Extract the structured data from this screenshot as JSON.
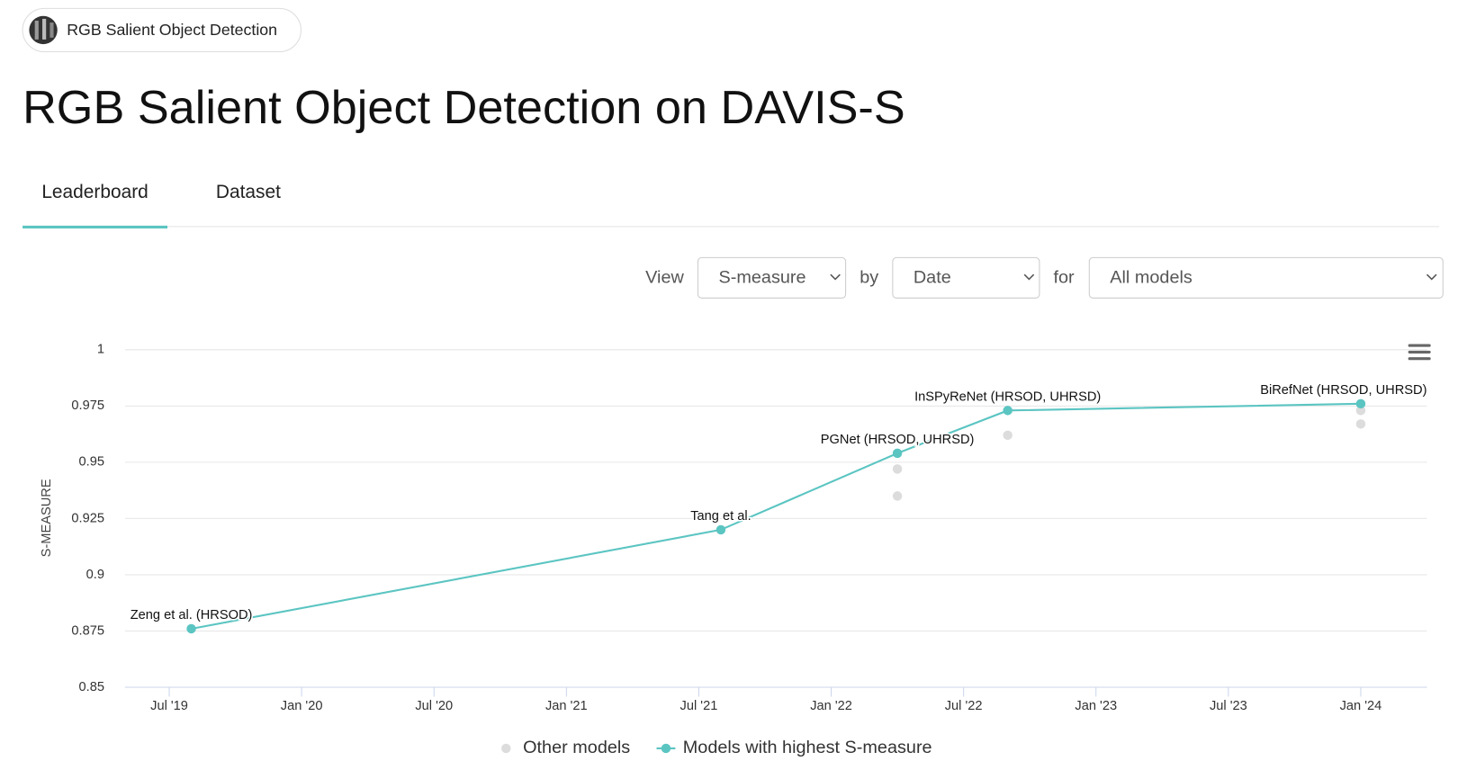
{
  "header": {
    "breadcrumb": "RGB Salient Object Detection",
    "title": "RGB Salient Object Detection on DAVIS-S"
  },
  "tabs": [
    "Leaderboard",
    "Dataset"
  ],
  "controls": {
    "view_label": "View",
    "view": "S-measure",
    "by_label": "by",
    "by": "Date",
    "for_label": "for",
    "for": "All models"
  },
  "chart_data": {
    "type": "line",
    "ylabel": "S-MEASURE",
    "xlim": [
      "2019-05",
      "2024-04"
    ],
    "xticks": [
      {
        "value": "2019-07",
        "label": "Jul '19"
      },
      {
        "value": "2020-01",
        "label": "Jan '20"
      },
      {
        "value": "2020-07",
        "label": "Jul '20"
      },
      {
        "value": "2021-01",
        "label": "Jan '21"
      },
      {
        "value": "2021-07",
        "label": "Jul '21"
      },
      {
        "value": "2022-01",
        "label": "Jan '22"
      },
      {
        "value": "2022-07",
        "label": "Jul '22"
      },
      {
        "value": "2023-01",
        "label": "Jan '23"
      },
      {
        "value": "2023-07",
        "label": "Jul '23"
      },
      {
        "value": "2024-01",
        "label": "Jan '24"
      }
    ],
    "ylim": [
      0.85,
      1
    ],
    "yticks": [
      0.85,
      0.875,
      0.9,
      0.925,
      0.95,
      0.975,
      1
    ],
    "grid": true,
    "legend": "bottom",
    "series": [
      {
        "name": "Other models",
        "type": "scatter",
        "color": "#dcdcdc",
        "x": [
          "2022-04",
          "2022-04",
          "2022-09",
          "2024-01",
          "2024-01"
        ],
        "values": [
          0.947,
          0.935,
          0.962,
          0.973,
          0.967
        ]
      },
      {
        "name": "Models with highest S-measure",
        "type": "line",
        "color": "#5bc5c2",
        "x": [
          "2019-08",
          "2021-08",
          "2022-04",
          "2022-09",
          "2024-01"
        ],
        "values": [
          0.876,
          0.92,
          0.954,
          0.973,
          0.976
        ],
        "labels": [
          "Zeng et al. (HRSOD)",
          "Tang et al.",
          "PGNet (HRSOD, UHRSD)",
          "InSPyReNet (HRSOD, UHRSD)",
          "BiRefNet (HRSOD, UHRSD)"
        ]
      }
    ]
  }
}
